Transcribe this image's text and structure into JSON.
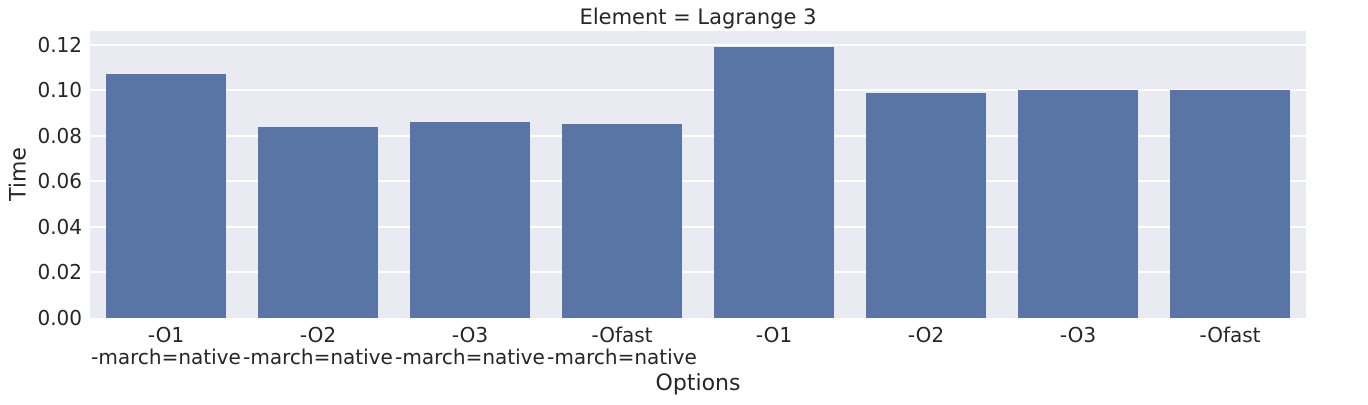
{
  "chart_data": {
    "type": "bar",
    "title": "Element = Lagrange 3",
    "xlabel": "Options",
    "ylabel": "Time",
    "categories": [
      "-O1\n-march=native",
      "-O2\n-march=native",
      "-O3\n-march=native",
      "-Ofast\n-march=native",
      "-O1",
      "-O2",
      "-O3",
      "-Ofast"
    ],
    "values": [
      0.107,
      0.084,
      0.086,
      0.085,
      0.119,
      0.099,
      0.1,
      0.1
    ],
    "yticks": [
      0.0,
      0.02,
      0.04,
      0.06,
      0.08,
      0.1,
      0.12
    ],
    "ytick_labels": [
      "0.00",
      "0.02",
      "0.04",
      "0.06",
      "0.08",
      "0.10",
      "0.12"
    ],
    "ylim": [
      0,
      0.126
    ],
    "grid": true,
    "legend": null,
    "colors": {
      "bar": "#5875a6",
      "plot_background": "#eaeaf2",
      "gridline": "#ffffff",
      "text": "#262626",
      "figure_background": "#ffffff"
    }
  }
}
